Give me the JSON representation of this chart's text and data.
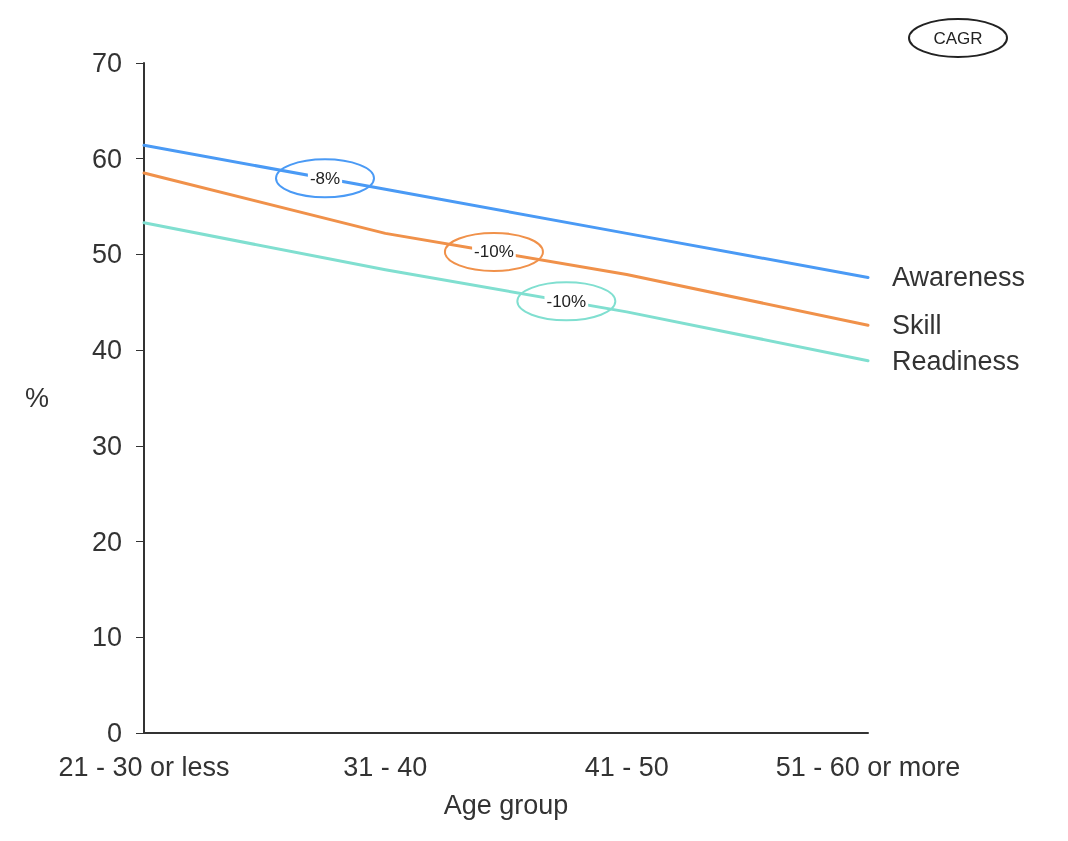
{
  "chart_data": {
    "type": "line",
    "xlabel": "Age group",
    "ylabel": "%",
    "categories": [
      "21 - 30 or less",
      "31 - 40",
      "41 - 50",
      "51 - 60 or more"
    ],
    "series": [
      {
        "name": "Awareness",
        "color": "#4a9af5",
        "values": [
          61.4,
          56.8,
          52.2,
          47.6
        ]
      },
      {
        "name": "Skill",
        "color": "#f0914a",
        "values": [
          58.5,
          52.2,
          47.9,
          42.6
        ]
      },
      {
        "name": "Readiness",
        "color": "#80dfd0",
        "values": [
          53.3,
          48.4,
          44.0,
          38.9
        ]
      }
    ],
    "annotations": [
      "CAGR",
      "-8%",
      "-10%",
      "-10%"
    ],
    "ylim": [
      0,
      70
    ],
    "yticks": [
      0,
      10,
      20,
      30,
      40,
      50,
      60,
      70
    ],
    "grid": false,
    "legend": false,
    "marker": "none",
    "line_style": "solid"
  }
}
